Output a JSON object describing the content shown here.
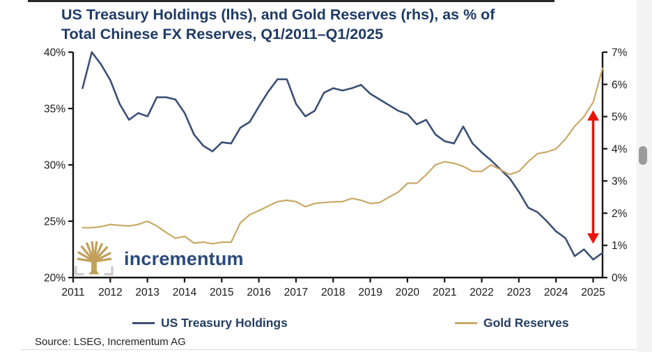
{
  "title": {
    "line1": "US Treasury Holdings (lhs), and Gold Reserves (rhs), as % of",
    "line2": "Total Chinese FX Reserves, Q1/2011–Q1/2025"
  },
  "chart_data": {
    "type": "line",
    "title": "US Treasury Holdings (lhs), and Gold Reserves (rhs), as % of Total Chinese FX Reserves, Q1/2011–Q1/2025",
    "x_frequency": "quarterly",
    "x_range": [
      "Q1/2011",
      "Q1/2025"
    ],
    "x_tick_labels": [
      "2011",
      "2012",
      "2013",
      "2014",
      "2015",
      "2016",
      "2017",
      "2018",
      "2019",
      "2020",
      "2021",
      "2022",
      "2023",
      "2024",
      "2025"
    ],
    "grid": false,
    "legend_position": "bottom",
    "left_axis": {
      "unit": "%",
      "min": 20,
      "max": 40,
      "tick_step": 5,
      "tick_labels": [
        "40%",
        "35%",
        "30%",
        "25%",
        "20%"
      ],
      "applies_to": "US Treasury Holdings"
    },
    "right_axis": {
      "unit": "%",
      "min": 0,
      "max": 7,
      "tick_step": 1,
      "tick_labels": [
        "7%",
        "6%",
        "5%",
        "4%",
        "3%",
        "2%",
        "1%",
        "0%"
      ],
      "applies_to": "Gold Reserves"
    },
    "series": [
      {
        "name": "US Treasury Holdings",
        "axis": "left",
        "color": "#3b4e74",
        "values": [
          36.8,
          40.0,
          38.9,
          37.5,
          35.4,
          34.0,
          34.6,
          34.3,
          36.0,
          36.0,
          35.8,
          34.6,
          32.7,
          31.7,
          31.2,
          32.0,
          31.9,
          33.3,
          33.8,
          35.2,
          36.5,
          37.6,
          37.6,
          35.4,
          34.3,
          34.8,
          36.4,
          36.8,
          36.6,
          36.8,
          37.1,
          36.3,
          35.8,
          35.3,
          34.8,
          34.5,
          33.6,
          34.0,
          32.7,
          32.1,
          31.9,
          33.4,
          31.9,
          31.1,
          30.4,
          29.6,
          28.8,
          27.6,
          26.2,
          25.8,
          25.0,
          24.1,
          23.5,
          21.9,
          22.5,
          21.6,
          22.2
        ]
      },
      {
        "name": "Gold Reserves",
        "axis": "right",
        "color": "#c9a866",
        "values": [
          1.55,
          1.55,
          1.58,
          1.65,
          1.62,
          1.6,
          1.65,
          1.75,
          1.6,
          1.4,
          1.22,
          1.28,
          1.07,
          1.1,
          1.05,
          1.1,
          1.1,
          1.7,
          1.95,
          2.08,
          2.22,
          2.36,
          2.4,
          2.36,
          2.2,
          2.3,
          2.33,
          2.35,
          2.36,
          2.46,
          2.4,
          2.3,
          2.33,
          2.5,
          2.65,
          2.93,
          2.93,
          3.19,
          3.5,
          3.6,
          3.55,
          3.45,
          3.3,
          3.3,
          3.5,
          3.35,
          3.2,
          3.3,
          3.6,
          3.85,
          3.9,
          4.0,
          4.3,
          4.7,
          5.0,
          5.45,
          6.5
        ]
      }
    ],
    "annotations": [
      {
        "type": "vertical-double-arrow",
        "color": "#e8140c",
        "x": "Q1/2025",
        "rhs_from": 5.2,
        "rhs_to": 1.05
      }
    ]
  },
  "legend": {
    "items": [
      {
        "label": "US Treasury Holdings",
        "color": "#3b4e74"
      },
      {
        "label": "Gold Reserves",
        "color": "#c9a866"
      }
    ]
  },
  "logo": {
    "text": "incrementum",
    "tree_color": "#c2a05c",
    "bracket_color": "#c9c9c9"
  },
  "source": {
    "text": "Source: LSEG, Incrementum AG"
  },
  "colors": {
    "title": "#1e3a66",
    "axis": "#141414",
    "red_arrow": "#e8140c"
  }
}
